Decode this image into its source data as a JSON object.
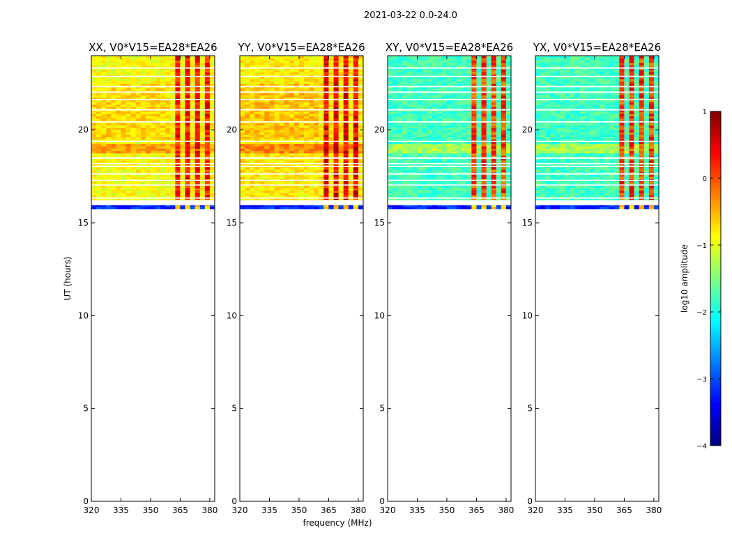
{
  "figure": {
    "suptitle": "2021-03-22 0.0-24.0",
    "xlabel": "frequency (MHz)",
    "ylabel": "UT (hours)"
  },
  "chart_data": {
    "type": "heatmap",
    "x_range": [
      320,
      382.5
    ],
    "y_range": [
      0,
      24
    ],
    "x_ticks": [
      320,
      335,
      350,
      365,
      380
    ],
    "y_ticks": [
      0,
      5,
      10,
      15,
      20
    ],
    "data_time_range_hours": [
      15.75,
      24
    ],
    "bright_band_hours": [
      18.8,
      19.3
    ],
    "rfi_channel_centers_mhz": [
      364.5,
      369.5,
      374.5,
      379.0
    ],
    "panels": [
      {
        "title": "XX, V0*V15=EA28*EA26",
        "polarization": "XX",
        "base_log_amplitude": -0.9,
        "rfi_log_amplitude": 0.3
      },
      {
        "title": "YY, V0*V15=EA28*EA26",
        "polarization": "YY",
        "base_log_amplitude": -0.8,
        "rfi_log_amplitude": 0.4
      },
      {
        "title": "XY, V0*V15=EA28*EA26",
        "polarization": "XY",
        "base_log_amplitude": -1.8,
        "rfi_log_amplitude": 0.1
      },
      {
        "title": "YX, V0*V15=EA28*EA26",
        "polarization": "YX",
        "base_log_amplitude": -1.8,
        "rfi_log_amplitude": 0.1
      }
    ],
    "colorbar": {
      "label": "log10 amplitude",
      "range": [
        -4,
        1
      ],
      "ticks": [
        -4,
        -3,
        -2,
        -1,
        0,
        1
      ],
      "tick_labels": [
        "−4",
        "−3",
        "−2",
        "−1",
        "0",
        "1"
      ],
      "colormap": "jet",
      "colors": [
        "#00007f",
        "#0000ff",
        "#007fff",
        "#00ffff",
        "#7fff7f",
        "#ffff00",
        "#ff7f00",
        "#ff0000",
        "#7f0000"
      ]
    }
  }
}
